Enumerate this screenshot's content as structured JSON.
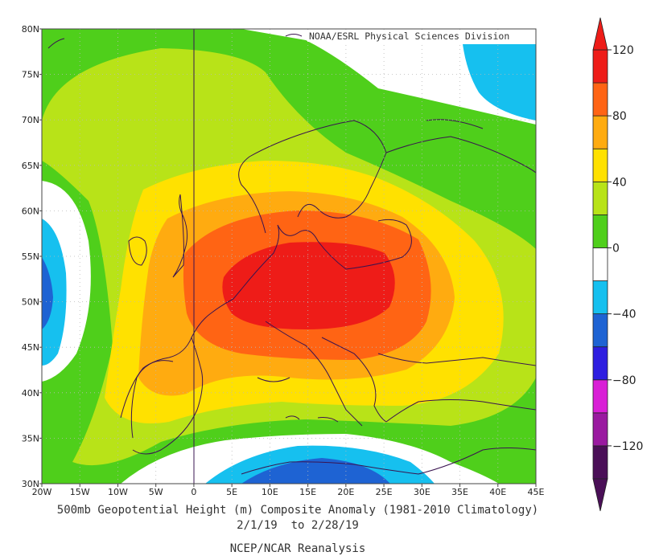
{
  "credit": "NOAA/ESRL Physical Sciences Division",
  "caption": {
    "line1": "500mb Geopotential Height (m) Composite Anomaly (1981-2010 Climatology)",
    "line2": "2/1/19  to 2/28/19",
    "line3": "NCEP/NCAR Reanalysis"
  },
  "map": {
    "lat_range": [
      30,
      80
    ],
    "lon_range": [
      -20,
      45
    ],
    "lat_ticks": [
      "30N",
      "35N",
      "40N",
      "45N",
      "50N",
      "55N",
      "60N",
      "65N",
      "70N",
      "75N",
      "80N"
    ],
    "lon_ticks": [
      "20W",
      "15W",
      "10W",
      "5W",
      "0",
      "5E",
      "10E",
      "15E",
      "20E",
      "25E",
      "30E",
      "35E",
      "40E",
      "45E"
    ],
    "centers": [
      {
        "type": "positive anomaly maximum",
        "lon": 13,
        "lat": 51.5,
        "value_range": "100 to 120"
      },
      {
        "type": "negative anomaly",
        "lon": 16,
        "lat": 31,
        "value_range": "-20 to -60"
      },
      {
        "type": "negative anomaly",
        "lon": -20,
        "lat": 51,
        "value_range": "-20 to -60"
      },
      {
        "type": "negative anomaly",
        "lon": 41,
        "lat": 77,
        "value_range": "-20 to -40"
      }
    ]
  },
  "colorbar": {
    "levels": [
      -140,
      -120,
      -100,
      -80,
      -60,
      -40,
      -20,
      0,
      20,
      40,
      60,
      80,
      100,
      120,
      140
    ],
    "labels": [
      "120",
      "80",
      "40",
      "0",
      "−40",
      "−80",
      "−120"
    ],
    "colors": [
      "#4a0f57",
      "#9a1aa0",
      "#d91fd6",
      "#2e1ee0",
      "#1e63d3",
      "#16c0ef",
      "#ffffff",
      "#4fcf1b",
      "#b8e318",
      "#ffe100",
      "#ffab10",
      "#ff6414",
      "#ee1c18"
    ],
    "arrow_top_color": "#ee1c18",
    "arrow_bottom_color": "#4a0f57"
  }
}
